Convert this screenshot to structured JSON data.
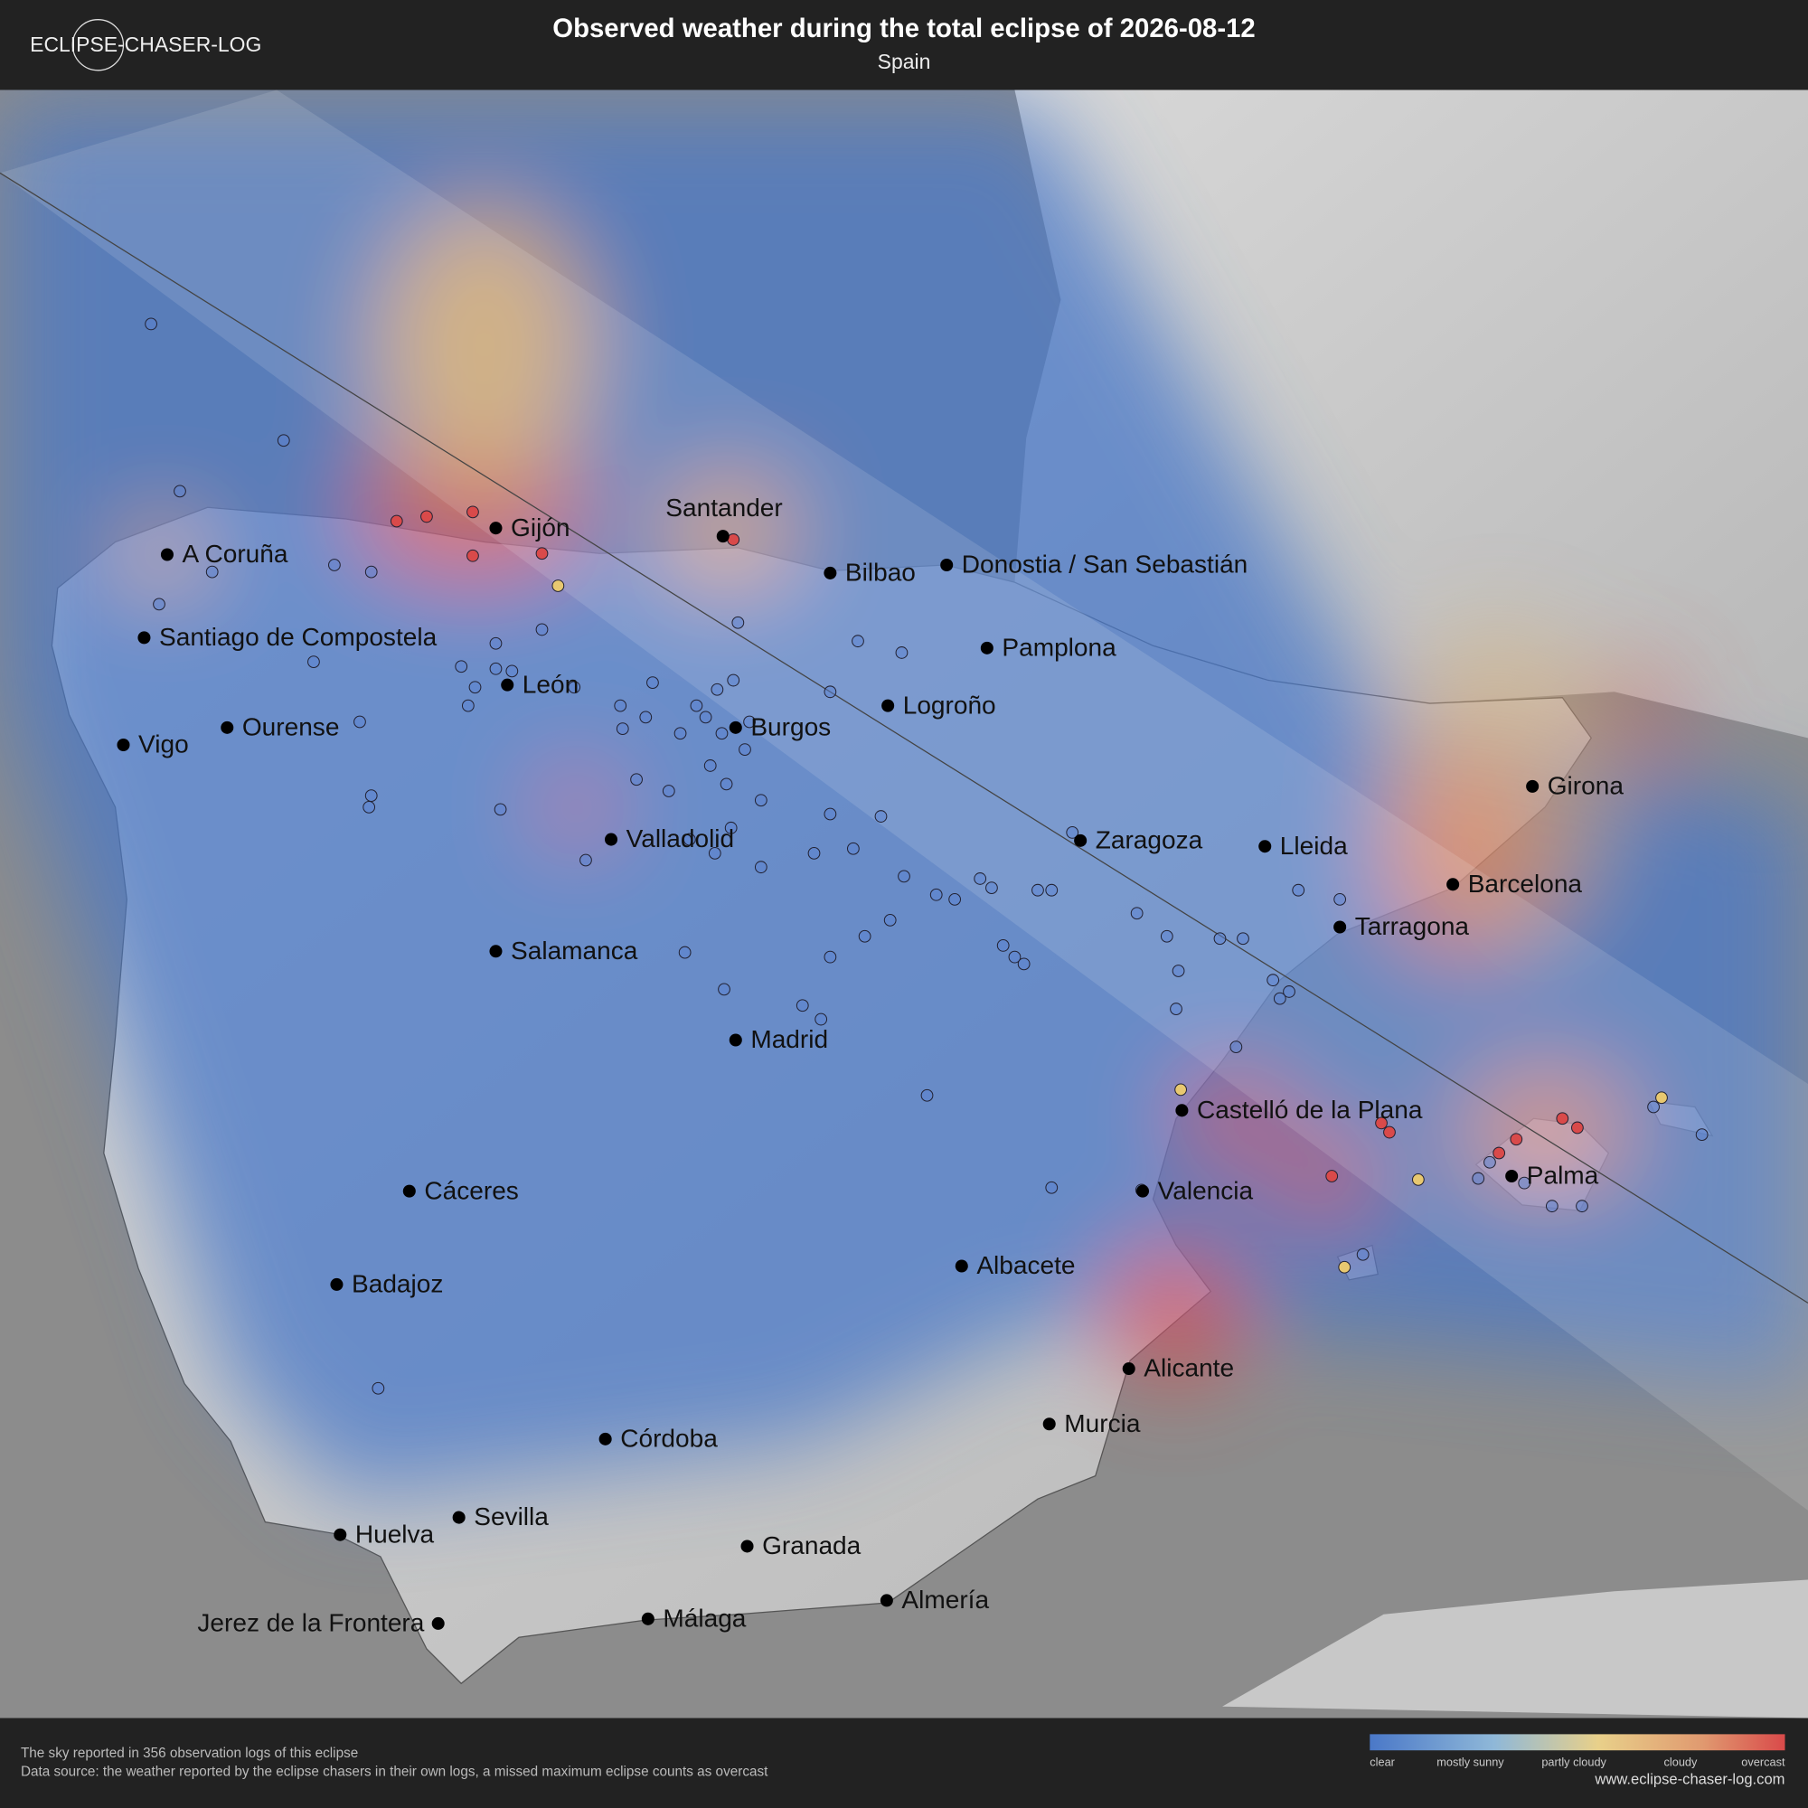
{
  "header": {
    "logo": "ECLIPSE-CHASER-LOG",
    "title": "Observed weather during the total eclipse of 2026-08-12",
    "subtitle": "Spain"
  },
  "cities": [
    "A Coruña",
    "Gijón",
    "Santander",
    "Bilbao",
    "Donostia / San Sebastián",
    "Santiago de Compostela",
    "Pamplona",
    "León",
    "Logroño",
    "Vigo",
    "Ourense",
    "Burgos",
    "Girona",
    "Valladolid",
    "Zaragoza",
    "Lleida",
    "Barcelona",
    "Tarragona",
    "Salamanca",
    "Madrid",
    "Castelló de la Plana",
    "Palma",
    "Valencia",
    "Cáceres",
    "Albacete",
    "Badajoz",
    "Alicante",
    "Murcia",
    "Córdoba",
    "Sevilla",
    "Huelva",
    "Granada",
    "Almería",
    "Jerez de la Frontera",
    "Málaga"
  ],
  "footer": {
    "summary": "The sky reported in 356 observation logs of this eclipse",
    "source": "Data source: the weather reported by the eclipse chasers in their own logs, a missed maximum eclipse counts as overcast",
    "website": "www.eclipse-chaser-log.com"
  },
  "legend": [
    "clear",
    "mostly sunny",
    "partly cloudy",
    "cloudy",
    "overcast"
  ]
}
